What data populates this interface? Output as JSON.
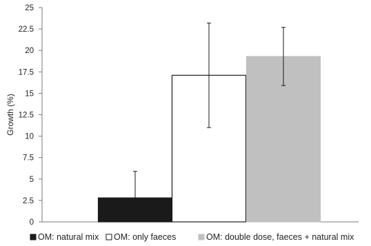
{
  "chart_data": {
    "type": "bar",
    "ylabel": "Growth (%)",
    "xlabel": "",
    "ylim": [
      0,
      25
    ],
    "ytick_step": 2.5,
    "ytick_labels": [
      "0",
      "2.5",
      "5",
      "7.5",
      "10",
      "12.5",
      "15",
      "17.5",
      "20",
      "22.5",
      "25"
    ],
    "grid": false,
    "legend_position": "bottom",
    "series": [
      {
        "name": "OM: natural mix",
        "value": 2.8,
        "error_low": 2.8,
        "error_high": 5.9,
        "fill": "#1a1a1a",
        "stroke": "#1a1a1a"
      },
      {
        "name": "OM: only faeces",
        "value": 17.1,
        "error_low": 11.0,
        "error_high": 23.2,
        "fill": "#ffffff",
        "stroke": "#1a1a1a"
      },
      {
        "name": "OM: double dose, faeces + natural mix",
        "value": 19.3,
        "error_low": 15.9,
        "error_high": 22.7,
        "fill": "#c0c0c0",
        "stroke": "#c0c0c0"
      }
    ]
  }
}
